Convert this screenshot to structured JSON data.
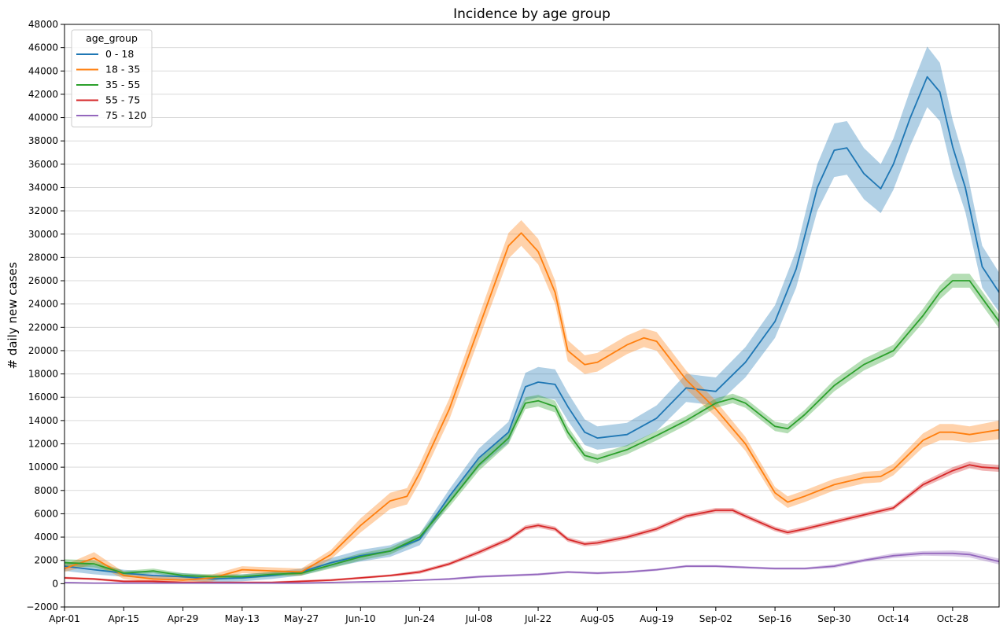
{
  "chart_data": {
    "type": "line",
    "title": "Incidence by age group",
    "xlabel": "",
    "ylabel": "# daily new cases",
    "ylim": [
      -2000,
      48000
    ],
    "yticks": [
      -2000,
      0,
      2000,
      4000,
      6000,
      8000,
      10000,
      12000,
      14000,
      16000,
      18000,
      20000,
      22000,
      24000,
      26000,
      28000,
      30000,
      32000,
      34000,
      36000,
      38000,
      40000,
      42000,
      44000,
      46000,
      48000
    ],
    "xlim": [
      "Apr-01",
      "Nov-08"
    ],
    "xticks": [
      "Apr-01",
      "Apr-15",
      "Apr-29",
      "May-13",
      "May-27",
      "Jun-10",
      "Jun-24",
      "Jul-08",
      "Jul-22",
      "Aug-05",
      "Aug-19",
      "Sep-02",
      "Sep-16",
      "Sep-30",
      "Oct-14",
      "Oct-28"
    ],
    "grid": true,
    "legend": {
      "title": "age_group",
      "placement": "top-left"
    },
    "uncertainty_band": true,
    "series": [
      {
        "name": "0 - 18",
        "color": "#1f77b4",
        "points": [
          [
            "Apr-01",
            1500
          ],
          [
            "Apr-08",
            1200
          ],
          [
            "Apr-15",
            900
          ],
          [
            "Apr-22",
            700
          ],
          [
            "Apr-29",
            600
          ],
          [
            "May-06",
            400
          ],
          [
            "May-13",
            500
          ],
          [
            "May-20",
            700
          ],
          [
            "May-27",
            1000
          ],
          [
            "Jun-03",
            1800
          ],
          [
            "Jun-10",
            2400
          ],
          [
            "Jun-17",
            2800
          ],
          [
            "Jun-24",
            3800
          ],
          [
            "Jul-01",
            7500
          ],
          [
            "Jul-08",
            10800
          ],
          [
            "Jul-15",
            13000
          ],
          [
            "Jul-19",
            16900
          ],
          [
            "Jul-22",
            17300
          ],
          [
            "Jul-26",
            17100
          ],
          [
            "Jul-29",
            15200
          ],
          [
            "Aug-02",
            13000
          ],
          [
            "Aug-05",
            12500
          ],
          [
            "Aug-12",
            12800
          ],
          [
            "Aug-19",
            14200
          ],
          [
            "Aug-26",
            16800
          ],
          [
            "Sep-02",
            16500
          ],
          [
            "Sep-09",
            19000
          ],
          [
            "Sep-16",
            22500
          ],
          [
            "Sep-21",
            27000
          ],
          [
            "Sep-26",
            34000
          ],
          [
            "Sep-30",
            37200
          ],
          [
            "Oct-03",
            37400
          ],
          [
            "Oct-07",
            35200
          ],
          [
            "Oct-11",
            33900
          ],
          [
            "Oct-14",
            36000
          ],
          [
            "Oct-18",
            40000
          ],
          [
            "Oct-22",
            43500
          ],
          [
            "Oct-25",
            42200
          ],
          [
            "Oct-28",
            37500
          ],
          [
            "Oct-31",
            34000
          ],
          [
            "Nov-04",
            27200
          ],
          [
            "Nov-08",
            25000
          ]
        ],
        "band_width": [
          400,
          400,
          300,
          300,
          300,
          300,
          300,
          300,
          300,
          400,
          500,
          500,
          500,
          600,
          800,
          900,
          1200,
          1300,
          1300,
          1200,
          1100,
          1000,
          1000,
          1100,
          1200,
          1200,
          1300,
          1400,
          1600,
          2000,
          2300,
          2300,
          2200,
          2100,
          2200,
          2400,
          2600,
          2500,
          2300,
          2100,
          1800,
          1700
        ]
      },
      {
        "name": "18 - 35",
        "color": "#ff7f0e",
        "points": [
          [
            "Apr-01",
            1300
          ],
          [
            "Apr-08",
            2200
          ],
          [
            "Apr-15",
            700
          ],
          [
            "Apr-22",
            400
          ],
          [
            "Apr-29",
            300
          ],
          [
            "May-06",
            500
          ],
          [
            "May-13",
            1200
          ],
          [
            "May-20",
            1100
          ],
          [
            "May-27",
            1000
          ],
          [
            "Jun-03",
            2500
          ],
          [
            "Jun-10",
            5000
          ],
          [
            "Jun-17",
            7100
          ],
          [
            "Jun-21",
            7500
          ],
          [
            "Jun-24",
            9500
          ],
          [
            "Jul-01",
            15000
          ],
          [
            "Jul-08",
            22000
          ],
          [
            "Jul-15",
            29000
          ],
          [
            "Jul-18",
            30100
          ],
          [
            "Jul-22",
            28500
          ],
          [
            "Jul-26",
            25000
          ],
          [
            "Jul-29",
            20000
          ],
          [
            "Aug-02",
            18800
          ],
          [
            "Aug-05",
            19000
          ],
          [
            "Aug-12",
            20500
          ],
          [
            "Aug-16",
            21100
          ],
          [
            "Aug-19",
            20800
          ],
          [
            "Aug-26",
            17500
          ],
          [
            "Sep-02",
            15000
          ],
          [
            "Sep-09",
            12000
          ],
          [
            "Sep-16",
            7800
          ],
          [
            "Sep-19",
            7000
          ],
          [
            "Sep-23",
            7500
          ],
          [
            "Sep-30",
            8500
          ],
          [
            "Oct-07",
            9100
          ],
          [
            "Oct-11",
            9200
          ],
          [
            "Oct-14",
            9800
          ],
          [
            "Oct-21",
            12300
          ],
          [
            "Oct-25",
            13000
          ],
          [
            "Oct-28",
            13000
          ],
          [
            "Nov-01",
            12800
          ],
          [
            "Nov-08",
            13200
          ]
        ],
        "band_width": [
          300,
          500,
          300,
          300,
          300,
          300,
          300,
          300,
          300,
          400,
          600,
          700,
          700,
          800,
          900,
          1000,
          1100,
          1100,
          1100,
          1000,
          900,
          800,
          800,
          800,
          800,
          800,
          800,
          700,
          600,
          500,
          500,
          500,
          500,
          500,
          500,
          500,
          600,
          700,
          700,
          700,
          800
        ]
      },
      {
        "name": "35 - 55",
        "color": "#2ca02c",
        "points": [
          [
            "Apr-01",
            1800
          ],
          [
            "Apr-08",
            1700
          ],
          [
            "Apr-15",
            900
          ],
          [
            "Apr-22",
            1100
          ],
          [
            "Apr-29",
            700
          ],
          [
            "May-06",
            600
          ],
          [
            "May-13",
            600
          ],
          [
            "May-20",
            800
          ],
          [
            "May-27",
            900
          ],
          [
            "Jun-03",
            1600
          ],
          [
            "Jun-10",
            2300
          ],
          [
            "Jun-17",
            2800
          ],
          [
            "Jun-24",
            4000
          ],
          [
            "Jul-01",
            7000
          ],
          [
            "Jul-08",
            10200
          ],
          [
            "Jul-15",
            12500
          ],
          [
            "Jul-19",
            15500
          ],
          [
            "Jul-22",
            15700
          ],
          [
            "Jul-26",
            15200
          ],
          [
            "Jul-29",
            13000
          ],
          [
            "Aug-02",
            11000
          ],
          [
            "Aug-05",
            10700
          ],
          [
            "Aug-12",
            11500
          ],
          [
            "Aug-19",
            12700
          ],
          [
            "Aug-26",
            14000
          ],
          [
            "Sep-02",
            15500
          ],
          [
            "Sep-06",
            15900
          ],
          [
            "Sep-09",
            15500
          ],
          [
            "Sep-16",
            13500
          ],
          [
            "Sep-19",
            13300
          ],
          [
            "Sep-23",
            14500
          ],
          [
            "Sep-30",
            17000
          ],
          [
            "Oct-07",
            18800
          ],
          [
            "Oct-14",
            20000
          ],
          [
            "Oct-21",
            23000
          ],
          [
            "Oct-25",
            25000
          ],
          [
            "Oct-28",
            26000
          ],
          [
            "Nov-01",
            26000
          ],
          [
            "Nov-04",
            24500
          ],
          [
            "Nov-08",
            22500
          ]
        ],
        "band_width": [
          300,
          300,
          200,
          200,
          200,
          200,
          200,
          200,
          200,
          300,
          300,
          300,
          300,
          400,
          500,
          500,
          500,
          500,
          500,
          500,
          400,
          400,
          400,
          400,
          400,
          400,
          400,
          400,
          400,
          400,
          400,
          500,
          500,
          500,
          600,
          600,
          600,
          600,
          600,
          600
        ]
      },
      {
        "name": "55 - 75",
        "color": "#d62728",
        "points": [
          [
            "Apr-01",
            500
          ],
          [
            "Apr-08",
            400
          ],
          [
            "Apr-15",
            200
          ],
          [
            "Apr-22",
            200
          ],
          [
            "Apr-29",
            100
          ],
          [
            "May-06",
            100
          ],
          [
            "May-13",
            100
          ],
          [
            "May-20",
            100
          ],
          [
            "May-27",
            200
          ],
          [
            "Jun-03",
            300
          ],
          [
            "Jun-10",
            500
          ],
          [
            "Jun-17",
            700
          ],
          [
            "Jun-24",
            1000
          ],
          [
            "Jul-01",
            1700
          ],
          [
            "Jul-08",
            2700
          ],
          [
            "Jul-15",
            3800
          ],
          [
            "Jul-19",
            4800
          ],
          [
            "Jul-22",
            5000
          ],
          [
            "Jul-26",
            4700
          ],
          [
            "Jul-29",
            3800
          ],
          [
            "Aug-02",
            3400
          ],
          [
            "Aug-05",
            3500
          ],
          [
            "Aug-12",
            4000
          ],
          [
            "Aug-19",
            4700
          ],
          [
            "Aug-26",
            5800
          ],
          [
            "Sep-02",
            6300
          ],
          [
            "Sep-06",
            6300
          ],
          [
            "Sep-09",
            5800
          ],
          [
            "Sep-16",
            4700
          ],
          [
            "Sep-19",
            4400
          ],
          [
            "Sep-23",
            4700
          ],
          [
            "Sep-30",
            5300
          ],
          [
            "Oct-07",
            5900
          ],
          [
            "Oct-14",
            6500
          ],
          [
            "Oct-21",
            8500
          ],
          [
            "Oct-28",
            9700
          ],
          [
            "Nov-01",
            10200
          ],
          [
            "Nov-04",
            10000
          ],
          [
            "Nov-08",
            9900
          ]
        ],
        "band_width": [
          100,
          100,
          100,
          100,
          100,
          100,
          100,
          100,
          100,
          100,
          100,
          100,
          150,
          150,
          200,
          200,
          200,
          200,
          200,
          200,
          200,
          200,
          200,
          200,
          200,
          200,
          200,
          200,
          200,
          200,
          200,
          200,
          200,
          200,
          250,
          300,
          300,
          300,
          300
        ]
      },
      {
        "name": "75 - 120",
        "color": "#9467bd",
        "points": [
          [
            "Apr-01",
            100
          ],
          [
            "Apr-08",
            50
          ],
          [
            "Apr-15",
            50
          ],
          [
            "Apr-22",
            50
          ],
          [
            "Apr-29",
            50
          ],
          [
            "May-06",
            50
          ],
          [
            "May-13",
            50
          ],
          [
            "May-20",
            50
          ],
          [
            "May-27",
            50
          ],
          [
            "Jun-03",
            100
          ],
          [
            "Jun-10",
            150
          ],
          [
            "Jun-17",
            200
          ],
          [
            "Jun-24",
            300
          ],
          [
            "Jul-01",
            400
          ],
          [
            "Jul-08",
            600
          ],
          [
            "Jul-15",
            700
          ],
          [
            "Jul-22",
            800
          ],
          [
            "Jul-29",
            1000
          ],
          [
            "Aug-05",
            900
          ],
          [
            "Aug-12",
            1000
          ],
          [
            "Aug-19",
            1200
          ],
          [
            "Aug-26",
            1500
          ],
          [
            "Sep-02",
            1500
          ],
          [
            "Sep-09",
            1400
          ],
          [
            "Sep-16",
            1300
          ],
          [
            "Sep-23",
            1300
          ],
          [
            "Sep-30",
            1500
          ],
          [
            "Oct-07",
            2000
          ],
          [
            "Oct-14",
            2400
          ],
          [
            "Oct-21",
            2600
          ],
          [
            "Oct-28",
            2600
          ],
          [
            "Nov-01",
            2500
          ],
          [
            "Nov-08",
            1900
          ]
        ],
        "band_width": [
          50,
          50,
          50,
          50,
          50,
          50,
          50,
          50,
          50,
          50,
          50,
          50,
          50,
          100,
          100,
          100,
          100,
          100,
          100,
          100,
          100,
          100,
          100,
          100,
          100,
          100,
          150,
          150,
          200,
          200,
          250,
          250,
          250
        ]
      }
    ]
  }
}
